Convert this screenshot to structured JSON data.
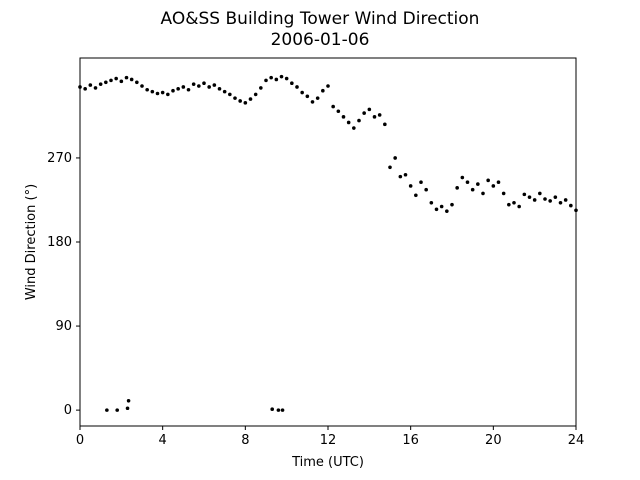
{
  "chart_data": {
    "type": "scatter",
    "title": "AO&SS Building Tower Wind Direction",
    "subtitle": "2006-01-06",
    "x_label": "Time (UTC)",
    "y_label": "Wind Direction (°)",
    "xlim": [
      0,
      24
    ],
    "xticks": [
      0,
      4,
      8,
      12,
      16,
      20,
      24
    ],
    "ylim": [
      -17,
      377
    ],
    "yticks": [
      0,
      90,
      180,
      270
    ],
    "grid": false,
    "series": [
      {
        "color": "#000000",
        "x": [
          0,
          0.25,
          0.5,
          0.75,
          1,
          1.25,
          1.5,
          1.75,
          2,
          2.25,
          2.5,
          2.75,
          3,
          3.25,
          3.5,
          3.75,
          4,
          4.25,
          4.5,
          4.75,
          5,
          5.25,
          5.5,
          5.75,
          6,
          6.25,
          6.5,
          6.75,
          7,
          7.25,
          7.5,
          7.75,
          8,
          8.25,
          8.5,
          8.75,
          9,
          9.25,
          9.5,
          9.75,
          10,
          10.25,
          10.5,
          10.75,
          11,
          11.25,
          11.5,
          11.75,
          12,
          12.25,
          12.5,
          12.75,
          13,
          13.25,
          13.5,
          13.75,
          14,
          14.25,
          14.5,
          14.75,
          15,
          15.25,
          15.5,
          15.75,
          16,
          16.25,
          16.5,
          16.75,
          17,
          17.25,
          17.5,
          17.75,
          18,
          18.25,
          18.5,
          18.75,
          19,
          19.25,
          19.5,
          19.75,
          20,
          20.25,
          20.5,
          20.75,
          21,
          21.25,
          21.5,
          21.75,
          22,
          22.25,
          22.5,
          22.75,
          23,
          23.25,
          23.5,
          23.75,
          24,
          1.3,
          1.8,
          2.3,
          2.35,
          9.3,
          9.6,
          9.8
        ],
        "values": [
          346,
          344,
          348,
          345,
          349,
          351,
          353,
          355,
          352,
          356,
          354,
          351,
          347,
          343,
          341,
          339,
          340,
          338,
          342,
          344,
          346,
          343,
          349,
          347,
          350,
          346,
          348,
          344,
          341,
          338,
          334,
          331,
          329,
          333,
          338,
          345,
          353,
          356,
          354,
          357,
          355,
          350,
          346,
          340,
          336,
          330,
          334,
          342,
          347,
          325,
          320,
          314,
          308,
          302,
          310,
          318,
          322,
          314,
          316,
          306,
          260,
          270,
          250,
          252,
          240,
          230,
          244,
          236,
          222,
          215,
          218,
          213,
          220,
          238,
          249,
          244,
          236,
          242,
          232,
          246,
          240,
          244,
          232,
          220,
          222,
          218,
          231,
          228,
          225,
          232,
          226,
          224,
          228,
          222,
          225,
          219,
          214,
          0,
          0,
          2,
          10,
          1,
          0,
          0
        ]
      }
    ]
  }
}
